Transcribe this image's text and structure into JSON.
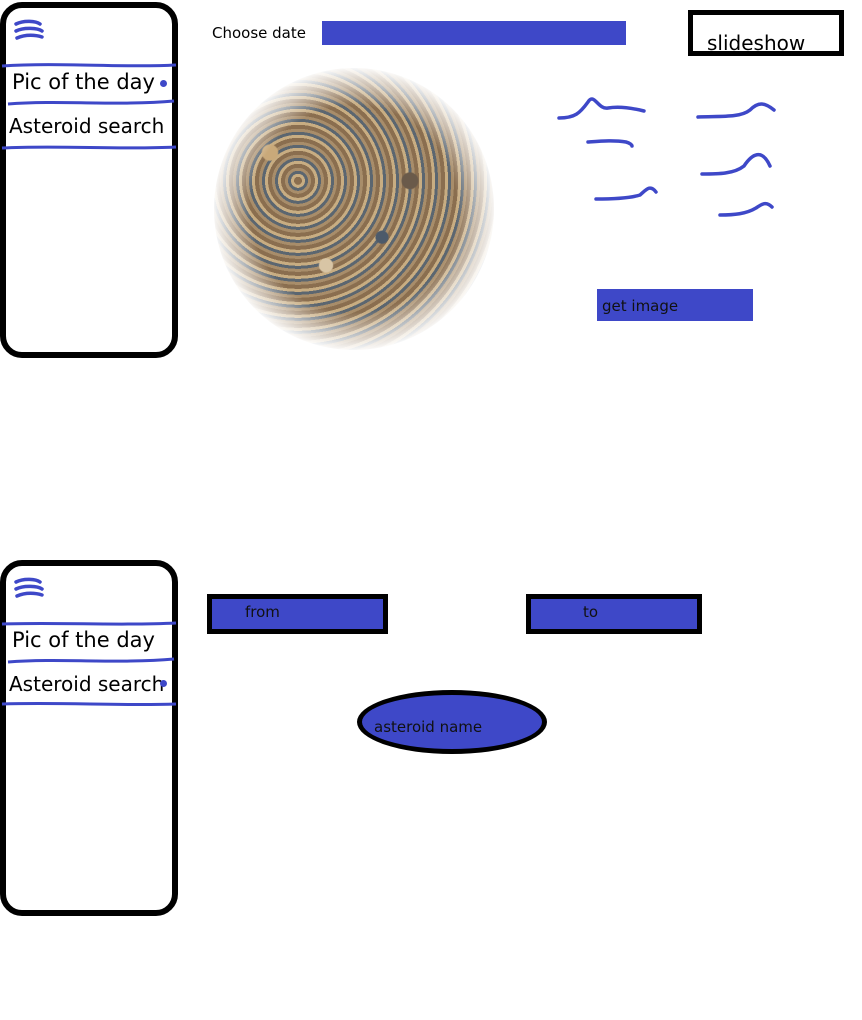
{
  "colors": {
    "accent": "#3e48c8",
    "frame": "#000000",
    "background": "#ffffff"
  },
  "icons": {
    "menu": "hamburger-icon"
  },
  "screens": [
    {
      "nav": {
        "items": [
          {
            "label": "Pic of the day"
          },
          {
            "label": "Asteroid search"
          }
        ]
      },
      "pic_of_day": {
        "choose_date_label": "Choose date",
        "slideshow_label": "slideshow",
        "get_image_label": "get image"
      }
    },
    {
      "nav": {
        "items": [
          {
            "label": "Pic of the day"
          },
          {
            "label": "Asteroid search"
          }
        ]
      },
      "asteroid_search": {
        "from_label": "from",
        "to_label": "to",
        "name_label": "asteroid name"
      }
    }
  ]
}
